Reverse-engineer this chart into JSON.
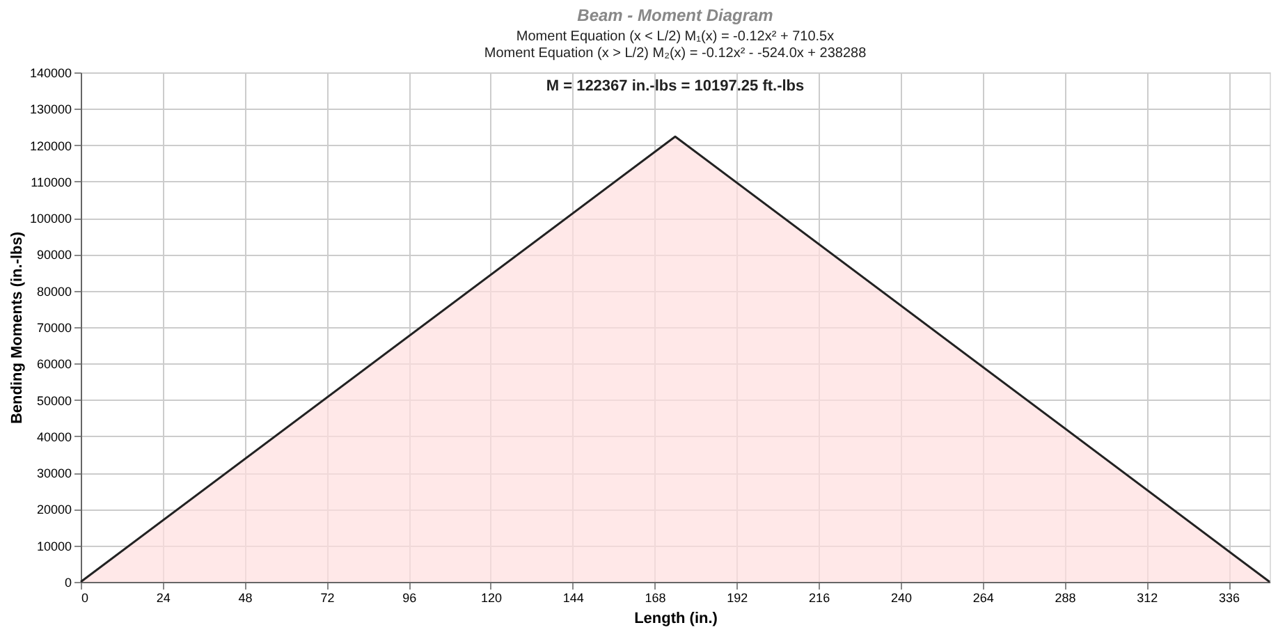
{
  "chart_data": {
    "type": "area",
    "title": "Beam - Moment Diagram",
    "subtitle": [
      "Moment Equation (x < L/2)  M₁(x) = -0.12x² + 710.5x",
      "Moment Equation (x > L/2)  M₂(x) = -0.12x² - -524.0x + 238288"
    ],
    "xlabel": "Length (in.)",
    "ylabel": "Bending Moments (in.-lbs)",
    "x": [
      0,
      174,
      348
    ],
    "series": [
      {
        "color": "#ffdede",
        "values": [
          0,
          122367,
          0
        ]
      }
    ],
    "annotations": [
      {
        "text": "M = 122367 in.-lbs = 10197.25 ft.-lbs",
        "x": 174,
        "y": 122367
      }
    ],
    "xlim": [
      0,
      348
    ],
    "xticks": [
      0,
      24,
      48,
      72,
      96,
      120,
      144,
      168,
      192,
      216,
      240,
      264,
      288,
      312,
      336
    ],
    "ylim": [
      0,
      140000
    ],
    "yticks": [
      0,
      10000,
      20000,
      30000,
      40000,
      50000,
      60000,
      70000,
      80000,
      90000,
      100000,
      110000,
      120000,
      130000,
      140000
    ],
    "grid": true
  }
}
